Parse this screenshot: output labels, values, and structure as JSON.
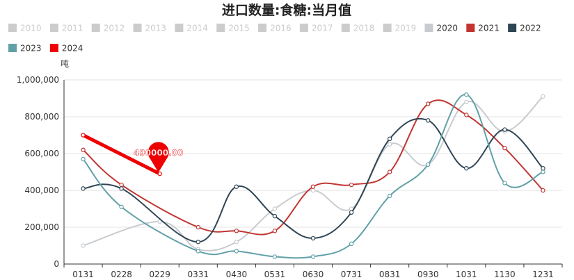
{
  "chart_data": {
    "type": "line",
    "title": "进口数量:食糖:当月值",
    "ylabel": "吨",
    "xlabel": "",
    "ylim": [
      0,
      1000000
    ],
    "y_ticks": [
      "0",
      "200,000",
      "400,000",
      "600,000",
      "800,000",
      "1,000,000"
    ],
    "y_tick_values": [
      0,
      200000,
      400000,
      600000,
      800000,
      1000000
    ],
    "categories": [
      "0131",
      "0228",
      "0229",
      "0331",
      "0430",
      "0531",
      "0630",
      "0731",
      "0831",
      "0930",
      "1031",
      "1130",
      "1231"
    ],
    "grid": true,
    "legend_position": "top",
    "legend": [
      {
        "name": "2010",
        "color": "#cccccc",
        "active": false
      },
      {
        "name": "2011",
        "color": "#cccccc",
        "active": false
      },
      {
        "name": "2012",
        "color": "#cccccc",
        "active": false
      },
      {
        "name": "2013",
        "color": "#cccccc",
        "active": false
      },
      {
        "name": "2014",
        "color": "#cccccc",
        "active": false
      },
      {
        "name": "2015",
        "color": "#cccccc",
        "active": false
      },
      {
        "name": "2016",
        "color": "#cccccc",
        "active": false
      },
      {
        "name": "2017",
        "color": "#cccccc",
        "active": false
      },
      {
        "name": "2018",
        "color": "#cccccc",
        "active": false
      },
      {
        "name": "2019",
        "color": "#cccccc",
        "active": false
      },
      {
        "name": "2020",
        "color": "#c8cbcf",
        "active": true
      },
      {
        "name": "2021",
        "color": "#c23531",
        "active": true
      },
      {
        "name": "2022",
        "color": "#2f4554",
        "active": true
      },
      {
        "name": "2023",
        "color": "#61a0a8",
        "active": true
      },
      {
        "name": "2024",
        "color": "#ee0000",
        "active": true
      }
    ],
    "series": [
      {
        "name": "2020",
        "color": "#c8cbcf",
        "width": 2,
        "smooth": true,
        "points": [
          [
            0,
            100000
          ],
          [
            2,
            230000
          ],
          [
            3,
            80000
          ],
          [
            4,
            120000
          ],
          [
            5,
            300000
          ],
          [
            6,
            400000
          ],
          [
            7,
            300000
          ],
          [
            8,
            650000
          ],
          [
            9,
            540000
          ],
          [
            10,
            880000
          ],
          [
            11,
            720000
          ],
          [
            12,
            910000
          ]
        ]
      },
      {
        "name": "2021",
        "color": "#c23531",
        "width": 2,
        "smooth": true,
        "points": [
          [
            0,
            620000
          ],
          [
            1,
            430000
          ],
          [
            3,
            200000
          ],
          [
            4,
            180000
          ],
          [
            5,
            180000
          ],
          [
            6,
            420000
          ],
          [
            7,
            430000
          ],
          [
            8,
            500000
          ],
          [
            9,
            870000
          ],
          [
            10,
            810000
          ],
          [
            11,
            630000
          ],
          [
            12,
            400000
          ]
        ]
      },
      {
        "name": "2022",
        "color": "#2f4554",
        "width": 2,
        "smooth": true,
        "points": [
          [
            0,
            410000
          ],
          [
            1,
            410000
          ],
          [
            3,
            120000
          ],
          [
            4,
            420000
          ],
          [
            5,
            260000
          ],
          [
            6,
            140000
          ],
          [
            7,
            280000
          ],
          [
            8,
            680000
          ],
          [
            9,
            780000
          ],
          [
            10,
            520000
          ],
          [
            11,
            730000
          ],
          [
            12,
            520000
          ]
        ]
      },
      {
        "name": "2023",
        "color": "#61a0a8",
        "width": 2,
        "smooth": true,
        "points": [
          [
            0,
            570000
          ],
          [
            1,
            310000
          ],
          [
            3,
            70000
          ],
          [
            4,
            70000
          ],
          [
            5,
            40000
          ],
          [
            6,
            40000
          ],
          [
            7,
            110000
          ],
          [
            8,
            370000
          ],
          [
            9,
            540000
          ],
          [
            10,
            920000
          ],
          [
            11,
            440000
          ],
          [
            12,
            500000
          ]
        ]
      },
      {
        "name": "2024",
        "color": "#ee0000",
        "width": 5,
        "smooth": false,
        "points": [
          [
            0,
            700000
          ],
          [
            2,
            490000
          ]
        ]
      }
    ],
    "annotations": [
      {
        "label": "490000.00",
        "series": "2024",
        "point": [
          2,
          490000
        ]
      }
    ]
  }
}
